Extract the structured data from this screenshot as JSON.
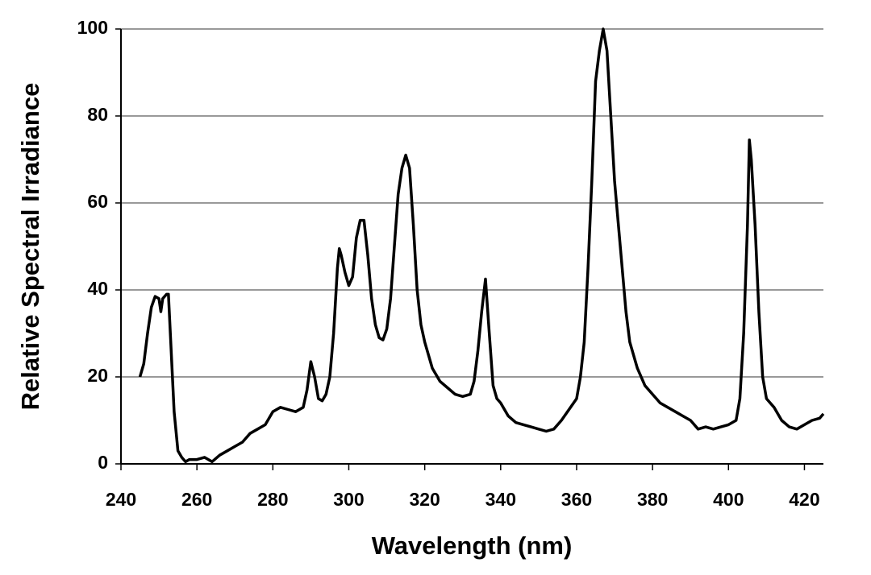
{
  "chart_data": {
    "type": "line",
    "xlabel": "Wavelength (nm)",
    "ylabel": "Relative Spectral Irradiance",
    "xlim": [
      240,
      425
    ],
    "xticks": [
      240,
      260,
      280,
      300,
      320,
      340,
      360,
      380,
      400,
      420
    ],
    "ylim": [
      0,
      100
    ],
    "yticks": [
      0,
      20,
      40,
      60,
      80,
      100
    ],
    "grid": true,
    "x": [
      245,
      246,
      247,
      248,
      249,
      250,
      250.5,
      251,
      252,
      252.5,
      253,
      254,
      255,
      256,
      257,
      258,
      260,
      262,
      264,
      266,
      268,
      270,
      272,
      274,
      276,
      278,
      280,
      282,
      284,
      286,
      288,
      289,
      290,
      291,
      292,
      293,
      294,
      295,
      296,
      297,
      297.5,
      298,
      299,
      300,
      301,
      302,
      303,
      304,
      305,
      306,
      307,
      308,
      309,
      310,
      311,
      312,
      313,
      314,
      315,
      316,
      317,
      318,
      319,
      320,
      322,
      324,
      326,
      328,
      330,
      332,
      333,
      334,
      335,
      336,
      337,
      338,
      339,
      340,
      342,
      344,
      346,
      348,
      350,
      352,
      354,
      356,
      358,
      360,
      361,
      362,
      363,
      364,
      365,
      366,
      367,
      368,
      369,
      370,
      371,
      372,
      373,
      374,
      376,
      378,
      380,
      382,
      384,
      386,
      388,
      390,
      392,
      394,
      396,
      398,
      400,
      402,
      403,
      404,
      405,
      405.5,
      406,
      407,
      408,
      409,
      410,
      412,
      414,
      416,
      418,
      420,
      422,
      424,
      425
    ],
    "series": [
      {
        "color": "#000000",
        "values": [
          20,
          23,
          30,
          36,
          38.5,
          38,
          35,
          38,
          39,
          39,
          30,
          12,
          3,
          1.5,
          0.5,
          1,
          1,
          1.5,
          0.5,
          2,
          3,
          4,
          5,
          7,
          8,
          9,
          12,
          13,
          12.5,
          12,
          13,
          17,
          23.5,
          20,
          15,
          14.5,
          16,
          20,
          30,
          45,
          49.5,
          48,
          44,
          41,
          43,
          52,
          56,
          56,
          48,
          38,
          32,
          29,
          28.5,
          31,
          38,
          50,
          62,
          68,
          71,
          68,
          55,
          40,
          32,
          28,
          22,
          19,
          17.5,
          16,
          15.5,
          16,
          19,
          26,
          35,
          42.5,
          30,
          18,
          15,
          14,
          11,
          9.5,
          9,
          8.5,
          8,
          7.5,
          8,
          10,
          12.5,
          15,
          20,
          28,
          45,
          65,
          88,
          95,
          100,
          95,
          80,
          65,
          55,
          45,
          35,
          28,
          22,
          18,
          16,
          14,
          13,
          12,
          11,
          10,
          8,
          8.5,
          8,
          8.5,
          9,
          10,
          15,
          30,
          55,
          74.5,
          70,
          55,
          35,
          20,
          15,
          13,
          10,
          8.5,
          8,
          9,
          10,
          10.5,
          11.5
        ]
      }
    ]
  }
}
